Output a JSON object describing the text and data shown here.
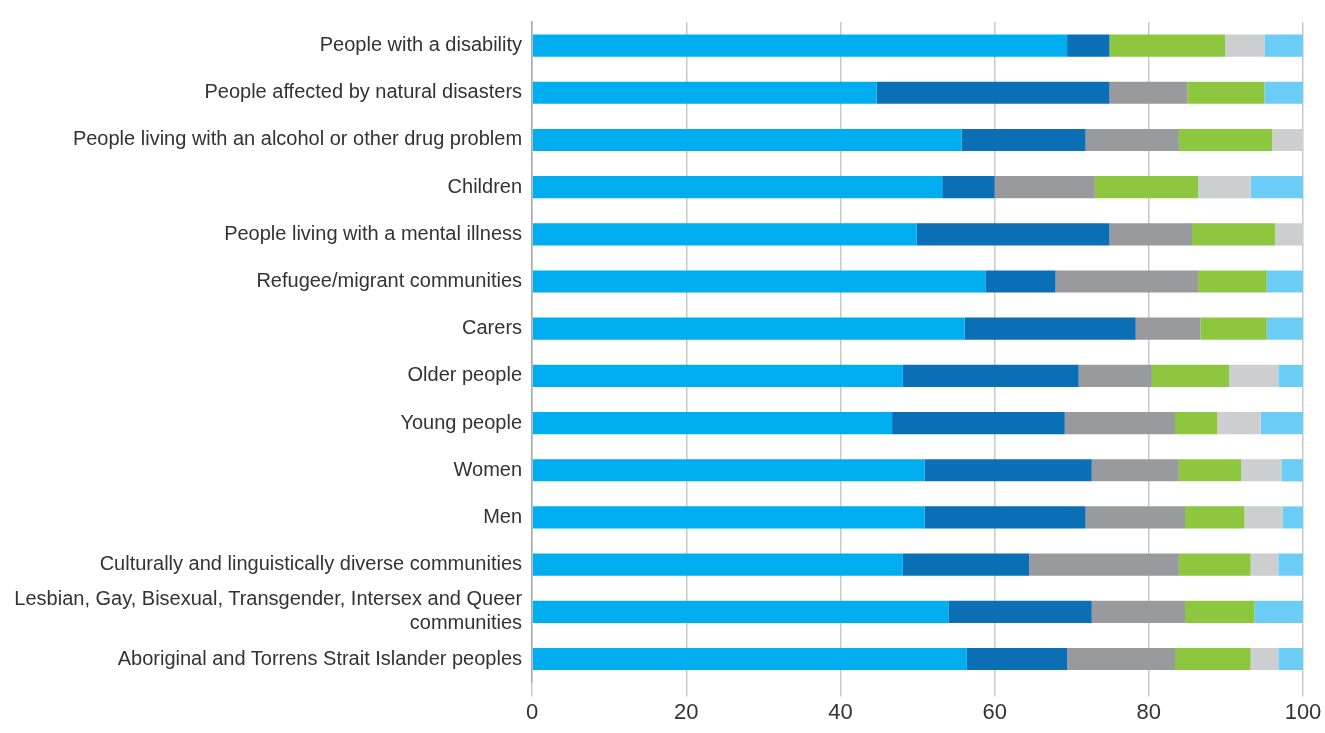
{
  "chart_data": {
    "type": "bar",
    "orientation": "horizontal",
    "stacked": true,
    "categories": [
      "People with a disability",
      "People affected by natural disasters",
      "People living with an alcohol or other drug problem",
      "Children",
      "People living with a mental illness",
      "Refugee/migrant communities",
      "Carers",
      "Older people",
      "Young people",
      "Women",
      "Men",
      "Culturally and linguistically diverse communities",
      "Lesbian, Gay, Bisexual, Transgender, Intersex and Queer communities",
      "Aboriginal and Torrens Strait Islander peoples"
    ],
    "series": [
      {
        "color": "#00aeef",
        "values": [
          69.4,
          44.7,
          55.7,
          53.2,
          49.9,
          58.8,
          56.1,
          48.1,
          46.7,
          50.9,
          50.9,
          48.1,
          54.0,
          56.4
        ]
      },
      {
        "color": "#0a6fb5",
        "values": [
          5.5,
          30.2,
          16.1,
          6.8,
          25.0,
          9.1,
          22.2,
          22.8,
          22.4,
          21.7,
          20.9,
          16.4,
          18.6,
          13.0
        ]
      },
      {
        "color": "#999a9e",
        "values": [
          0,
          10.1,
          12.1,
          13.0,
          10.7,
          18.5,
          8.4,
          9.5,
          14.3,
          11.3,
          12.9,
          19.4,
          12.1,
          14.0
        ]
      },
      {
        "color": "#8dc63f",
        "values": [
          15.0,
          10.0,
          12.1,
          13.4,
          10.8,
          8.9,
          8.6,
          10.0,
          5.5,
          8.1,
          7.7,
          9.3,
          9.0,
          9.8
        ]
      },
      {
        "color": "#cdcecf",
        "values": [
          5.1,
          0,
          4.0,
          6.8,
          3.6,
          0,
          0,
          6.4,
          5.6,
          5.2,
          5.0,
          3.6,
          0,
          3.6
        ]
      },
      {
        "color": "#6bcdf5",
        "values": [
          5.0,
          5.0,
          0,
          6.8,
          0,
          4.7,
          4.7,
          3.2,
          5.5,
          2.8,
          2.6,
          3.2,
          6.3,
          3.2
        ]
      }
    ],
    "xlim": [
      0,
      100
    ],
    "xticks": [
      0,
      20,
      40,
      60,
      80,
      100
    ],
    "grid": "x",
    "legend": false
  }
}
